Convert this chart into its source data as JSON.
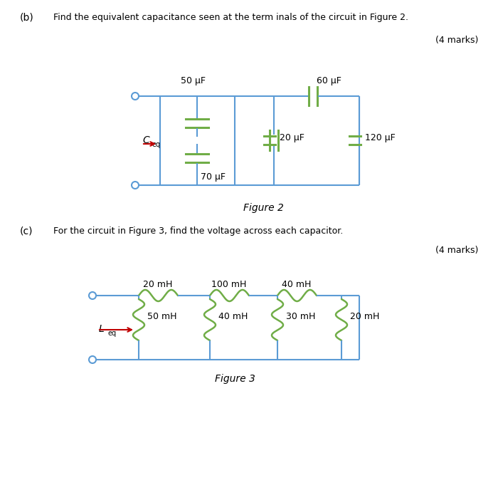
{
  "page_bg": "#ffffff",
  "wire_color": "#5b9bd5",
  "component_color": "#70ad47",
  "arrow_color": "#c00000",
  "text_color": "#000000",
  "part_b_label": "(b)",
  "part_b_text": "Find the equivalent capacitance seen at the term inals of the circuit in Figure 2.",
  "part_b_marks": "(4 marks)",
  "part_c_label": "(c)",
  "part_c_text": "For the circuit in Figure 3, find the voltage across each capacitor.",
  "part_c_marks": "(4 marks)",
  "fig2_title": "Figure 2",
  "fig3_title": "Figure 3",
  "cap_50": "50 μF",
  "cap_70": "70 μF",
  "cap_20": "20 μF",
  "cap_60": "60 μF",
  "cap_120": "120 μF",
  "ind_20mH_top": "20 mH",
  "ind_100mH_top": "100 mH",
  "ind_40mH_top": "40 mH",
  "ind_50mH": "50 mH",
  "ind_40mH": "40 mH",
  "ind_30mH": "30 mH",
  "ind_20mH": "20 mH"
}
